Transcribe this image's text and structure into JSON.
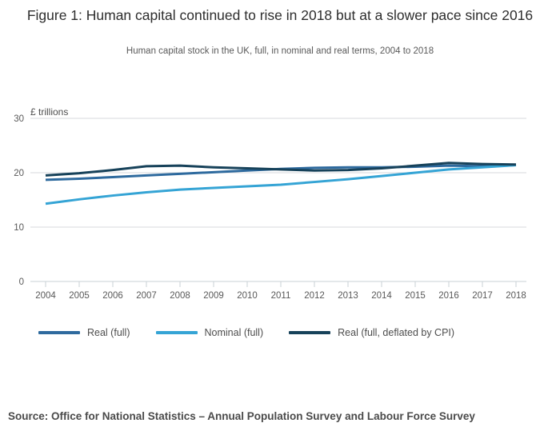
{
  "header": {
    "title": "Figure 1: Human capital continued to rise in 2018 but at a slower pace since 2016",
    "subtitle": "Human capital stock in the UK, full, in nominal and real terms, 2004 to 2018"
  },
  "chart_data": {
    "type": "line",
    "title": "Figure 1: Human capital continued to rise in 2018 but at a slower pace since 2016",
    "subtitle": "Human capital stock in the UK, full, in nominal and real terms, 2004 to 2018",
    "unit_label": "£ trillions",
    "x": [
      2004,
      2005,
      2006,
      2007,
      2008,
      2009,
      2010,
      2011,
      2012,
      2013,
      2014,
      2015,
      2016,
      2017,
      2018
    ],
    "ylim": [
      0,
      30
    ],
    "yticks": [
      0,
      10,
      20,
      30
    ],
    "grid": "horizontal",
    "legend_position": "bottom",
    "series": [
      {
        "name": "Real (full)",
        "color": "#2e6a9e",
        "values": [
          18.7,
          18.9,
          19.2,
          19.5,
          19.8,
          20.1,
          20.4,
          20.7,
          20.9,
          21.0,
          21.0,
          21.1,
          21.3,
          21.2,
          21.4
        ]
      },
      {
        "name": "Nominal (full)",
        "color": "#35a4d5",
        "values": [
          14.3,
          15.1,
          15.8,
          16.4,
          16.9,
          17.2,
          17.5,
          17.8,
          18.3,
          18.8,
          19.4,
          20.0,
          20.6,
          21.0,
          21.4
        ]
      },
      {
        "name": "Real (full, deflated by CPI)",
        "color": "#17425a",
        "values": [
          19.5,
          19.9,
          20.5,
          21.2,
          21.3,
          21.0,
          20.8,
          20.6,
          20.4,
          20.5,
          20.8,
          21.3,
          21.8,
          21.6,
          21.5
        ]
      }
    ]
  },
  "footer": {
    "source": "Source: Office for National Statistics – Annual Population Survey and Labour Force Survey"
  },
  "colors": {
    "gridline": "#d7dadd",
    "axis": "#c8d0d6",
    "axis_label": "#595959",
    "unit_label": "#4d4d4d"
  }
}
